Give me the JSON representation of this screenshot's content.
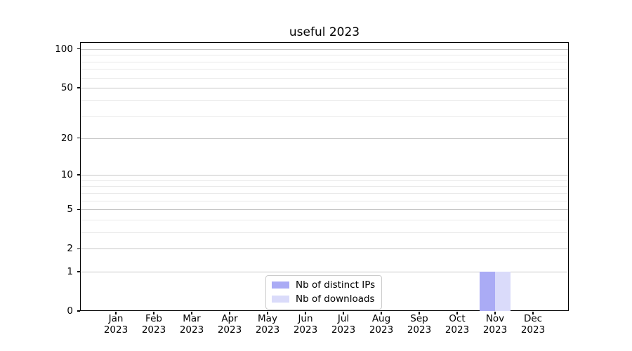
{
  "chart_data": {
    "type": "bar",
    "title": "useful 2023",
    "categories": [
      "Jan 2023",
      "Feb 2023",
      "Mar 2023",
      "Apr 2023",
      "May 2023",
      "Jun 2023",
      "Jul 2023",
      "Aug 2023",
      "Sep 2023",
      "Oct 2023",
      "Nov 2023",
      "Dec 2023"
    ],
    "series": [
      {
        "name": "Nb of distinct IPs",
        "color": "#aaabf5",
        "values": [
          0,
          0,
          0,
          0,
          0,
          0,
          0,
          0,
          0,
          0,
          1,
          0
        ]
      },
      {
        "name": "Nb of downloads",
        "color": "#dadbfa",
        "values": [
          0,
          0,
          0,
          0,
          0,
          0,
          0,
          0,
          0,
          0,
          1,
          0
        ]
      }
    ],
    "xlabel": "",
    "ylabel": "",
    "yscale": "log1p",
    "ylim": [
      0,
      113
    ],
    "yticks": [
      0,
      1,
      2,
      5,
      10,
      20,
      50,
      100
    ],
    "minor_gridlines": [
      3,
      4,
      6,
      7,
      8,
      9,
      30,
      40,
      60,
      70,
      80,
      90
    ],
    "grid": "horizontal",
    "legend_location": "lower center",
    "colors": {
      "background": "#ffffff",
      "spine": "#000000",
      "grid_major": "#c6c6c6",
      "grid_minor": "#e9e9e9",
      "legend_border": "#cccccc"
    }
  }
}
